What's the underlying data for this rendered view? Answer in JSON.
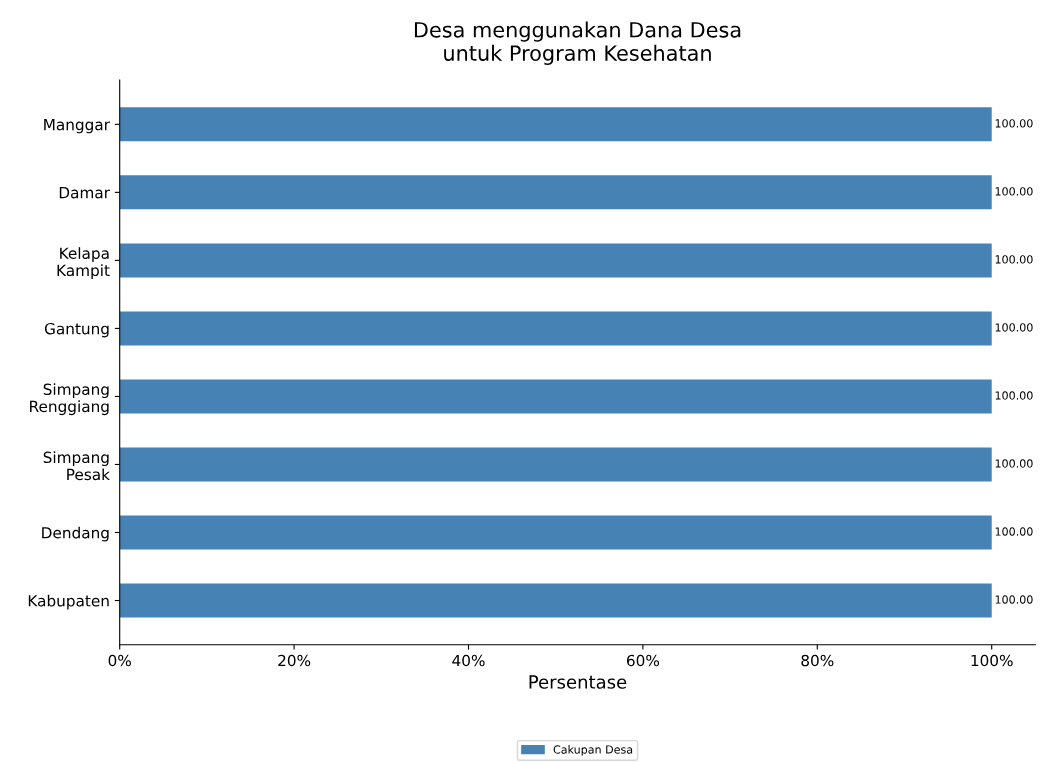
{
  "chart_data": {
    "type": "bar",
    "orientation": "horizontal",
    "title": "Desa menggunakan Dana Desa\nuntuk Program Kesehatan",
    "xlabel": "Persentase",
    "categories": [
      "Manggar",
      "Damar",
      "Kelapa Kampit",
      "Gantung",
      "Simpang Renggiang",
      "Simpang Pesak",
      "Dendang",
      "Kabupaten"
    ],
    "series": [
      {
        "name": "Cakupan Desa",
        "color": "#4682b4",
        "values": [
          100,
          100,
          100,
          100,
          100,
          100,
          100,
          100
        ],
        "value_labels": [
          "100.00",
          "100.00",
          "100.00",
          "100.00",
          "100.00",
          "100.00",
          "100.00",
          "100.00"
        ]
      }
    ],
    "xlim": [
      0,
      105
    ],
    "xticks": [
      {
        "value": 0,
        "label": "0%"
      },
      {
        "value": 20,
        "label": "20%"
      },
      {
        "value": 40,
        "label": "40%"
      },
      {
        "value": 60,
        "label": "60%"
      },
      {
        "value": 80,
        "label": "80%"
      },
      {
        "value": 100,
        "label": "100%"
      }
    ],
    "legend": "bottom",
    "grid": false
  }
}
